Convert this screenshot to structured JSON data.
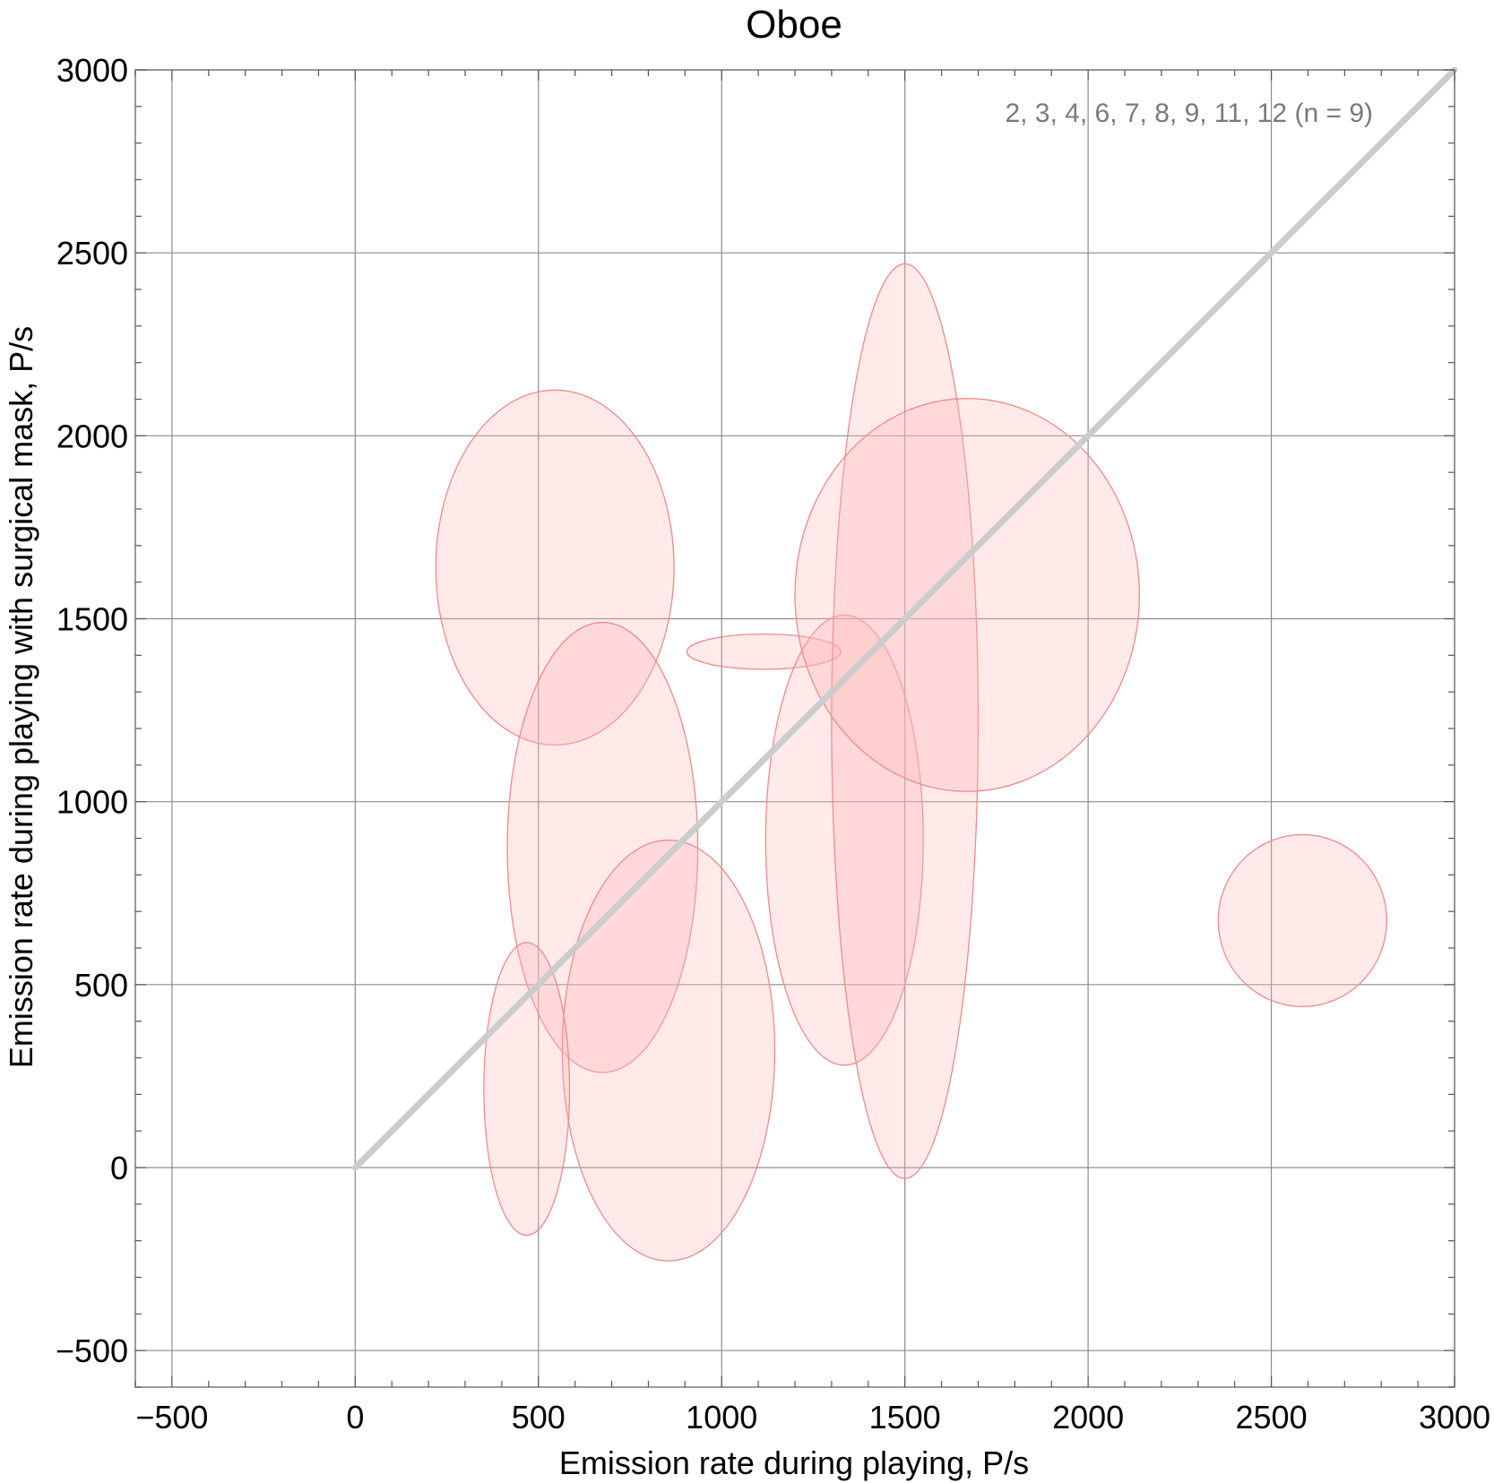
{
  "chart_data": {
    "type": "scatter",
    "title": "Oboe",
    "xlabel": "Emission rate during playing,  P/s",
    "ylabel": "Emission rate during playing with surgical mask,  P/s",
    "xlim": [
      -600,
      3000
    ],
    "ylim": [
      -600,
      3000
    ],
    "x_ticks": [
      -500,
      0,
      500,
      1000,
      1500,
      2000,
      2500,
      3000
    ],
    "y_ticks": [
      -500,
      0,
      500,
      1000,
      1500,
      2000,
      2500,
      3000
    ],
    "x_tick_labels": [
      "−500",
      "0",
      "500",
      "1000",
      "1500",
      "2000",
      "2500",
      "3000"
    ],
    "y_tick_labels": [
      "−500",
      "0",
      "500",
      "1000",
      "1500",
      "2000",
      "2500",
      "3000"
    ],
    "grid": true,
    "annotation": "2, 3, 4, 6, 7, 8, 9, 11, 12  (n = 9)",
    "reference_line": {
      "from": [
        0,
        0
      ],
      "to": [
        3000,
        3000
      ],
      "color": "#cccccc"
    },
    "ellipse_fill": "#ffb6b6",
    "ellipse_stroke": "#f08a8a",
    "ellipses": [
      {
        "cx": 545,
        "cy": 1640,
        "rx": 325,
        "ry": 485
      },
      {
        "cx": 675,
        "cy": 875,
        "rx": 260,
        "ry": 615
      },
      {
        "cx": 1115,
        "cy": 1410,
        "rx": 210,
        "ry": 48
      },
      {
        "cx": 1335,
        "cy": 895,
        "rx": 215,
        "ry": 615
      },
      {
        "cx": 1500,
        "cy": 1220,
        "rx": 200,
        "ry": 1250
      },
      {
        "cx": 1670,
        "cy": 1565,
        "rx": 470,
        "ry": 537
      },
      {
        "cx": 855,
        "cy": 320,
        "rx": 290,
        "ry": 575
      },
      {
        "cx": 468,
        "cy": 215,
        "rx": 117,
        "ry": 400
      },
      {
        "cx": 2585,
        "cy": 675,
        "rx": 230,
        "ry": 235
      }
    ]
  }
}
